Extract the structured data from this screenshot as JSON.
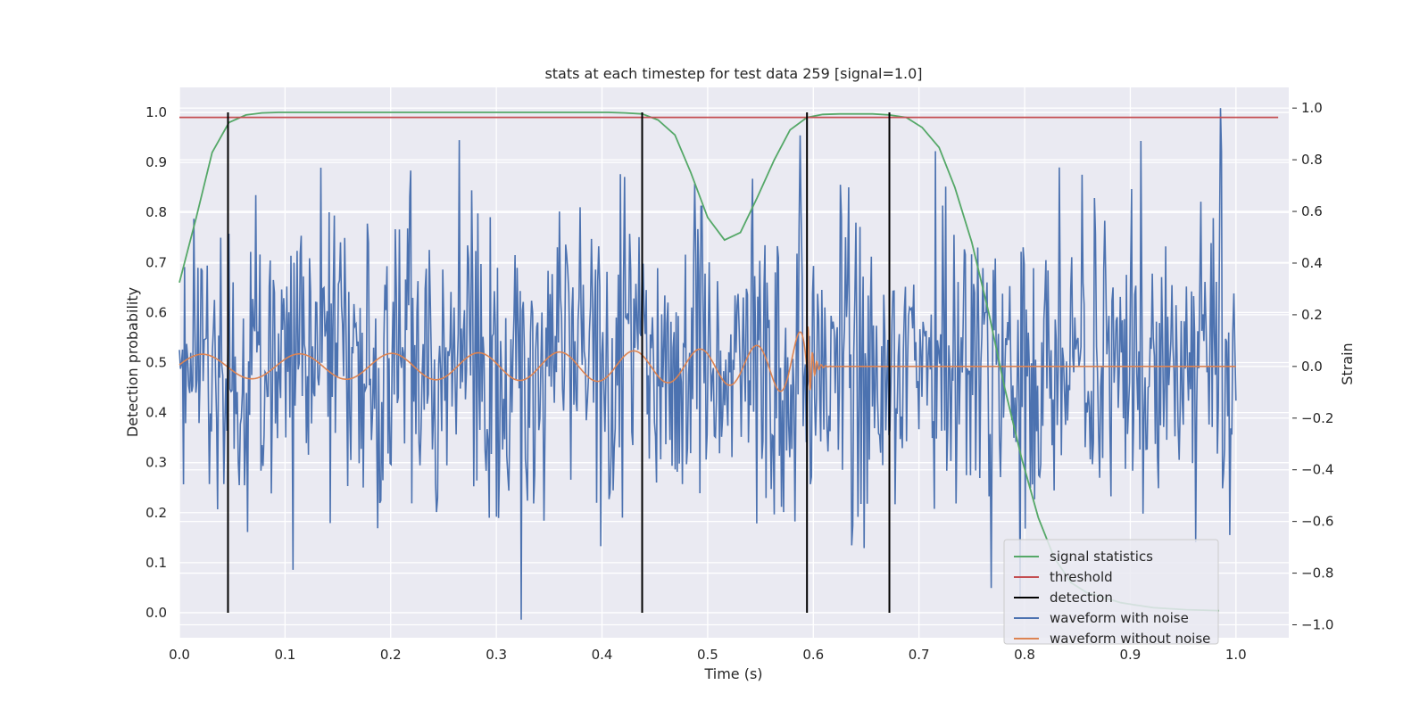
{
  "chart_data": {
    "type": "line",
    "title": "stats at each timestep for test data 259 [signal=1.0]",
    "xlabel": "Time (s)",
    "ylabel_left": "Detection probability",
    "ylabel_right": "Strain",
    "xlim": [
      0.0,
      1.05
    ],
    "ylim_left": [
      -0.05,
      1.05
    ],
    "ylim_right": [
      -1.05,
      1.08
    ],
    "x_ticks": [
      "0.0",
      "0.1",
      "0.2",
      "0.3",
      "0.4",
      "0.5",
      "0.6",
      "0.7",
      "0.8",
      "0.9",
      "1.0"
    ],
    "y_ticks_left": [
      "0.0",
      "0.1",
      "0.2",
      "0.3",
      "0.4",
      "0.5",
      "0.6",
      "0.7",
      "0.8",
      "0.9",
      "1.0"
    ],
    "y_ticks_right": [
      "−1.0",
      "−0.8",
      "−0.6",
      "−0.4",
      "−0.2",
      "0.0",
      "0.2",
      "0.4",
      "0.6",
      "0.8",
      "1.0"
    ],
    "grid": true,
    "legend_position": "lower-right",
    "series": [
      {
        "name": "signal statistics",
        "color": "#55a868",
        "axis": "left",
        "x": [
          0.0,
          0.016,
          0.031,
          0.047,
          0.063,
          0.078,
          0.094,
          0.109,
          0.125,
          0.156,
          0.188,
          0.219,
          0.25,
          0.281,
          0.313,
          0.344,
          0.375,
          0.406,
          0.422,
          0.438,
          0.453,
          0.469,
          0.484,
          0.5,
          0.516,
          0.531,
          0.547,
          0.563,
          0.578,
          0.594,
          0.609,
          0.625,
          0.641,
          0.656,
          0.672,
          0.688,
          0.703,
          0.719,
          0.734,
          0.75,
          0.766,
          0.781,
          0.797,
          0.813,
          0.828,
          0.844,
          0.859,
          0.875,
          0.891,
          0.906,
          0.922,
          0.938,
          0.953,
          0.969,
          0.984
        ],
        "values": [
          0.66,
          0.79,
          0.92,
          0.98,
          0.995,
          0.999,
          1.0,
          1.0,
          1.0,
          1.0,
          1.0,
          1.0,
          1.0,
          1.0,
          1.0,
          1.0,
          1.0,
          1.0,
          0.999,
          0.997,
          0.985,
          0.955,
          0.88,
          0.79,
          0.745,
          0.76,
          0.83,
          0.905,
          0.965,
          0.99,
          0.996,
          0.997,
          0.997,
          0.997,
          0.995,
          0.99,
          0.97,
          0.93,
          0.85,
          0.74,
          0.6,
          0.45,
          0.31,
          0.19,
          0.11,
          0.06,
          0.04,
          0.03,
          0.02,
          0.015,
          0.01,
          0.008,
          0.006,
          0.005,
          0.004
        ]
      },
      {
        "name": "threshold",
        "color": "#c44e52",
        "axis": "left",
        "x": [
          0.0,
          1.04
        ],
        "values": [
          0.99,
          0.99
        ]
      },
      {
        "name": "detection",
        "color": "#000000",
        "axis": "left",
        "x_positions": [
          0.046,
          0.438,
          0.594,
          0.672
        ],
        "range": [
          0.0,
          1.0
        ]
      },
      {
        "name": "waveform with noise",
        "color": "#4c72b0",
        "axis": "right",
        "x_range": [
          0.0,
          1.0
        ],
        "n_points": 1024,
        "noise_std": 0.3
      },
      {
        "name": "waveform without noise",
        "color": "#dd8452",
        "axis": "right",
        "x_range": [
          0.0,
          1.0
        ],
        "chirp_amplitude_start": 0.03,
        "chirp_amplitude_peak": 0.21,
        "merger_time": 0.594
      }
    ]
  }
}
